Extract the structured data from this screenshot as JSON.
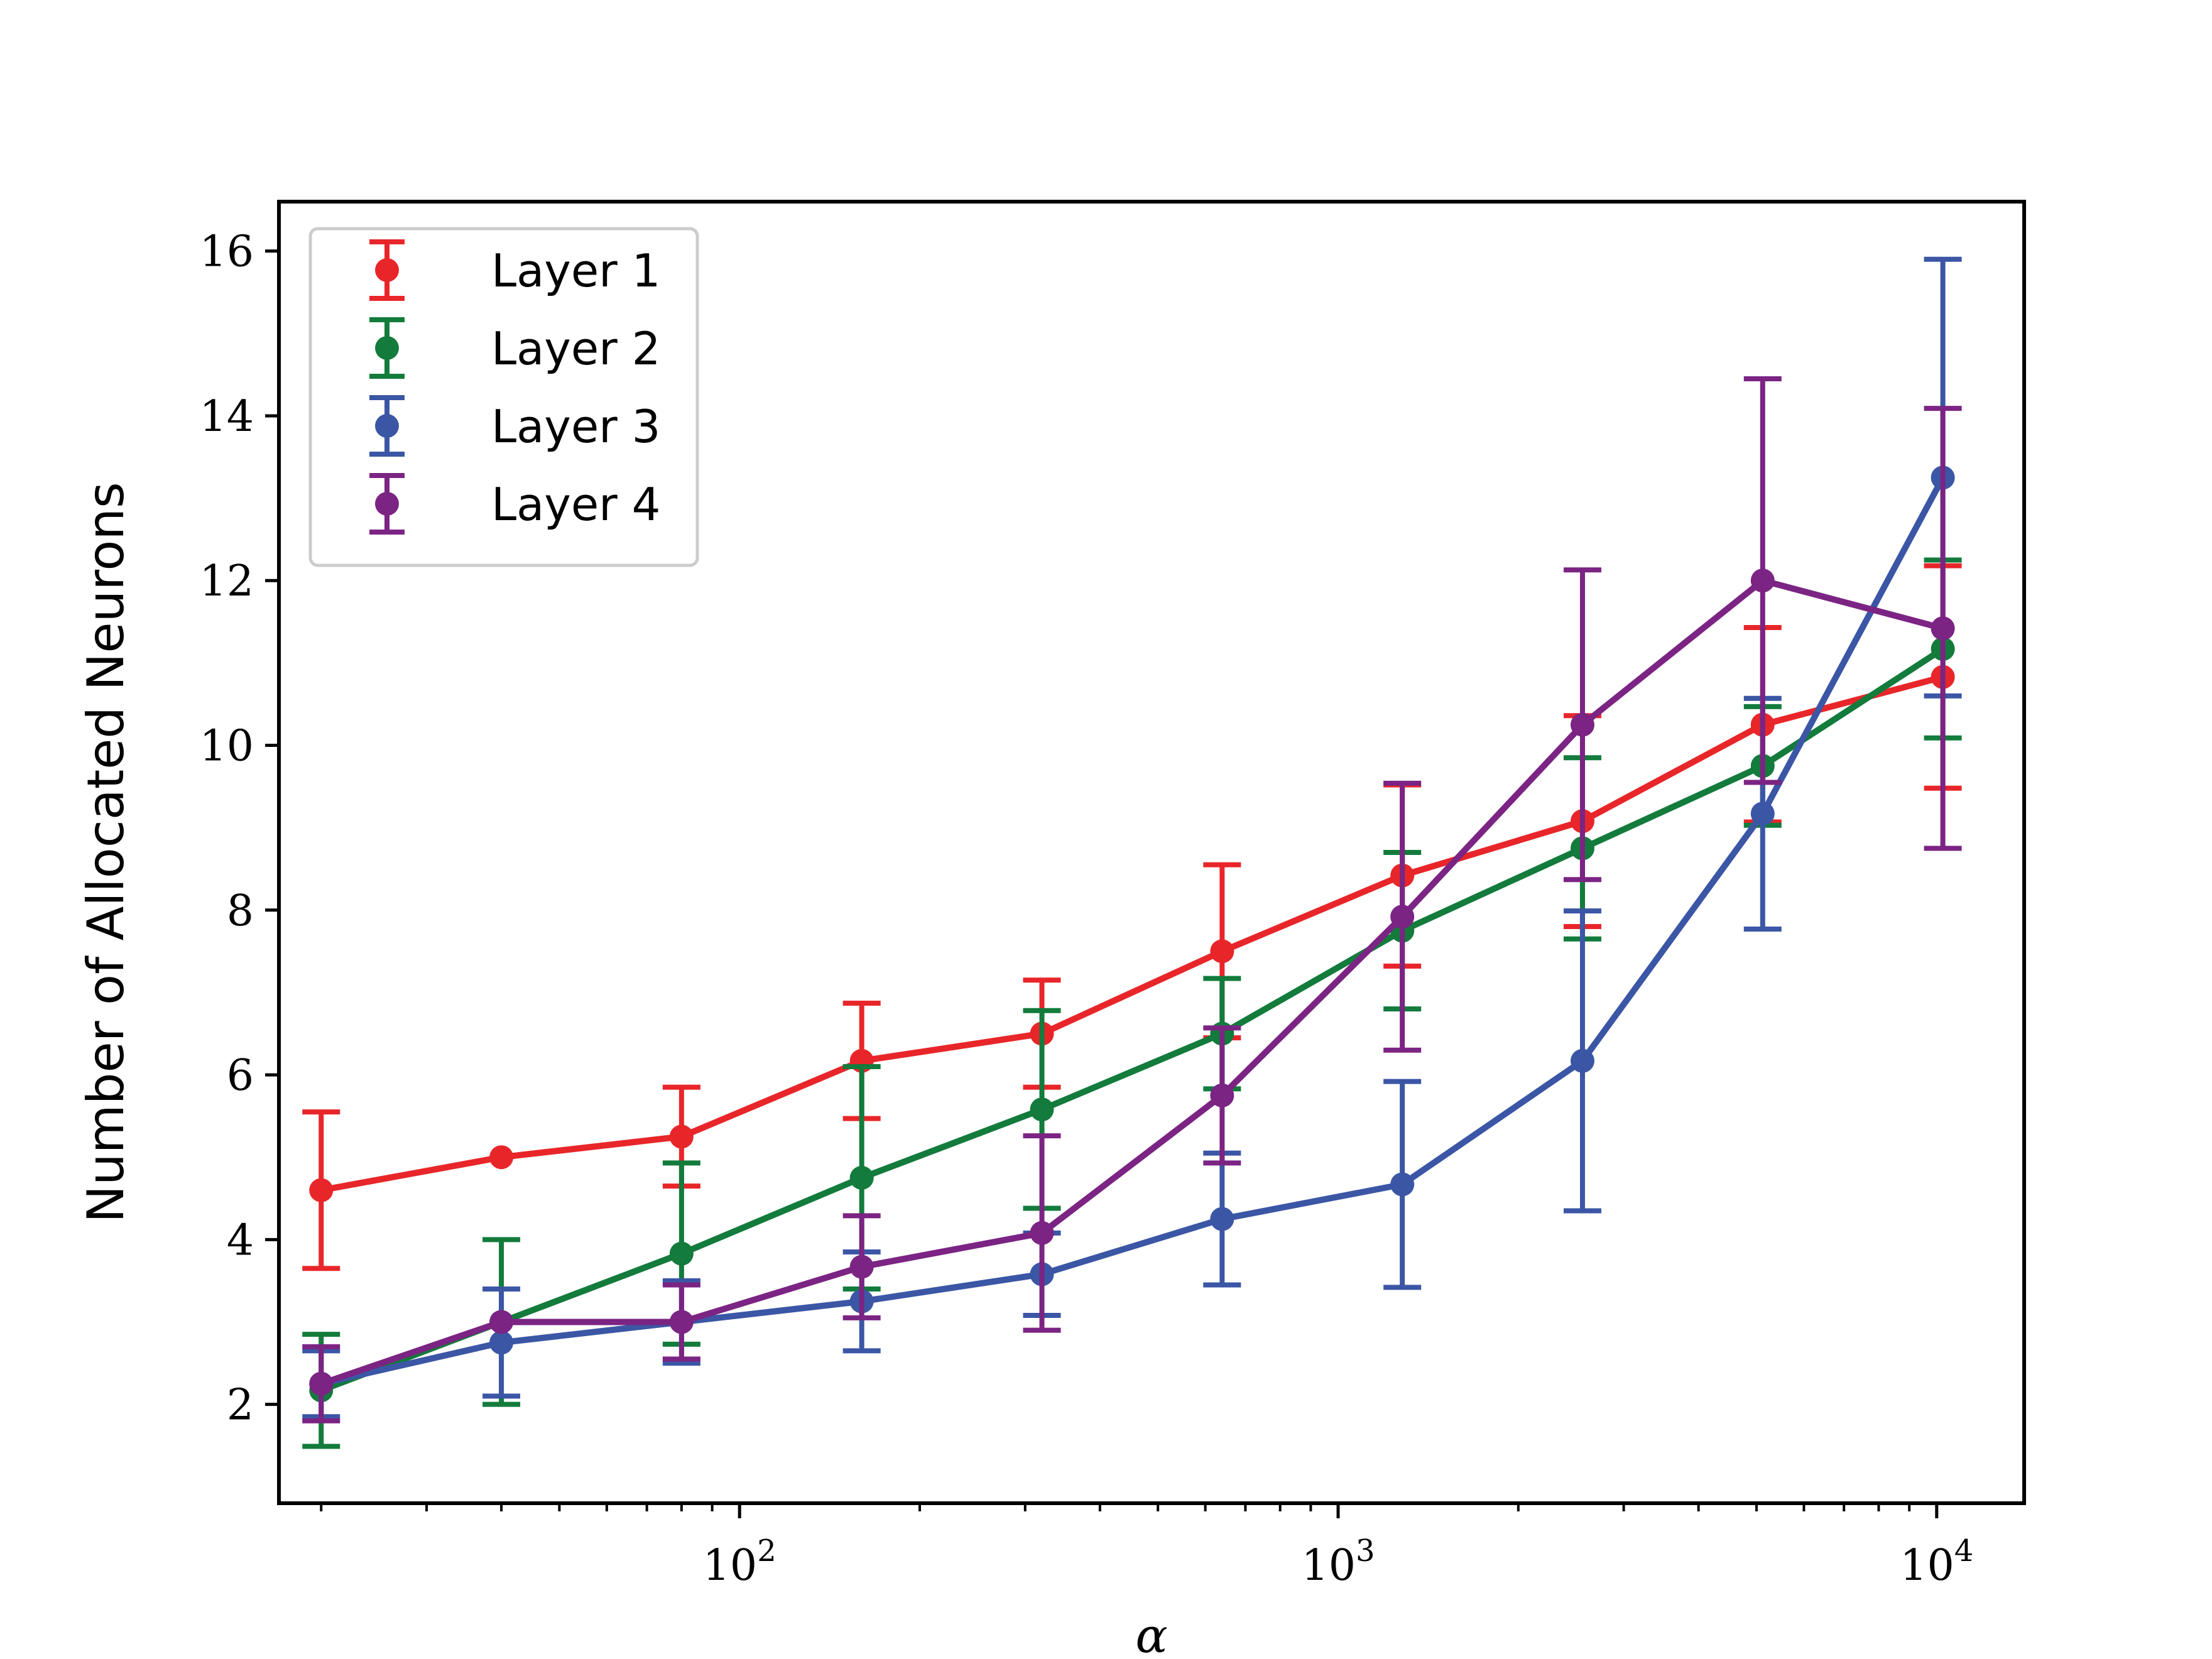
{
  "chart_data": {
    "type": "line",
    "title": "",
    "xlabel": "α",
    "ylabel": "Number of Allocated Neurons",
    "xscale": "log",
    "xlim": [
      17,
      14000
    ],
    "ylim": [
      0.8,
      16.6
    ],
    "grid": false,
    "legend_position": "upper-left",
    "x": [
      20,
      40,
      80,
      160,
      320,
      640,
      1280,
      2560,
      5120,
      10240
    ],
    "xticks": [
      {
        "value": 100,
        "base": "10",
        "exp": "2"
      },
      {
        "value": 1000,
        "base": "10",
        "exp": "3"
      },
      {
        "value": 10000,
        "base": "10",
        "exp": "4"
      }
    ],
    "yticks": [
      "2",
      "4",
      "6",
      "8",
      "10",
      "12",
      "14",
      "16"
    ],
    "series": [
      {
        "name": "Layer 1",
        "color": "#e8262a",
        "values": [
          4.6,
          5.0,
          5.25,
          6.17,
          6.5,
          7.5,
          8.42,
          9.08,
          10.25,
          10.83
        ],
        "errors": [
          0.95,
          0.0,
          0.6,
          0.7,
          0.65,
          1.05,
          1.1,
          1.28,
          1.18,
          1.35
        ]
      },
      {
        "name": "Layer 2",
        "color": "#137b3c",
        "values": [
          2.17,
          3.0,
          3.83,
          4.75,
          5.58,
          6.5,
          7.75,
          8.75,
          9.75,
          11.17
        ],
        "errors": [
          0.68,
          1.0,
          1.1,
          1.35,
          1.2,
          0.67,
          0.95,
          1.1,
          0.72,
          1.08
        ]
      },
      {
        "name": "Layer 3",
        "color": "#3b56a5",
        "values": [
          2.25,
          2.75,
          3.0,
          3.25,
          3.58,
          4.25,
          4.67,
          6.17,
          9.17,
          13.25
        ],
        "errors": [
          0.4,
          0.65,
          0.5,
          0.6,
          0.5,
          0.8,
          1.25,
          1.82,
          1.4,
          2.65
        ]
      },
      {
        "name": "Layer 4",
        "color": "#7b2483",
        "values": [
          2.25,
          3.0,
          3.0,
          3.67,
          4.08,
          5.75,
          7.92,
          10.25,
          12.0,
          11.42
        ],
        "errors": [
          0.45,
          0.0,
          0.45,
          0.62,
          1.18,
          0.82,
          1.62,
          1.88,
          2.45,
          2.67
        ]
      }
    ]
  }
}
